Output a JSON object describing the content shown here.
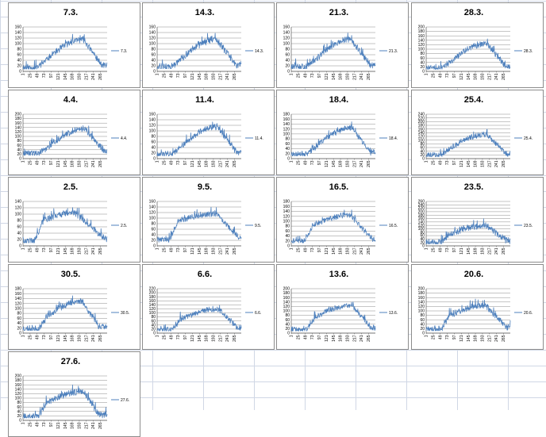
{
  "colors": {
    "series": "#4f81bd",
    "grid": "#8c8c8c",
    "panel_border": "#8c8c8c",
    "sheet_grid": "#d0d7e5"
  },
  "x_tick_labels": [
    "1",
    "25",
    "49",
    "73",
    "97",
    "121",
    "145",
    "169",
    "193",
    "217",
    "241",
    "265"
  ],
  "chart_data": [
    {
      "type": "line",
      "title": "7.3.",
      "series": [
        {
          "name": "7.3.",
          "values": []
        }
      ],
      "yticks": [
        0,
        20,
        40,
        60,
        80,
        100,
        120,
        140,
        160
      ],
      "ylim": [
        0,
        160
      ],
      "shape": {
        "base": 14,
        "low": 40,
        "high": 115,
        "ramp_start": 0.17,
        "peak": 0.72,
        "drop_end": 0.93,
        "noise": 12,
        "seed": 11
      },
      "xlabel": "",
      "ylabel": ""
    },
    {
      "type": "line",
      "title": "14.3.",
      "series": [
        {
          "name": "14.3.",
          "values": []
        }
      ],
      "yticks": [
        0,
        20,
        40,
        60,
        80,
        100,
        120,
        140,
        160
      ],
      "ylim": [
        0,
        160
      ],
      "shape": {
        "base": 16,
        "low": 40,
        "high": 115,
        "ramp_start": 0.17,
        "peak": 0.7,
        "drop_end": 0.94,
        "noise": 13,
        "seed": 12
      },
      "xlabel": "",
      "ylabel": ""
    },
    {
      "type": "line",
      "title": "21.3.",
      "series": [
        {
          "name": "21.3.",
          "values": []
        }
      ],
      "yticks": [
        0,
        20,
        40,
        60,
        80,
        100,
        120,
        140,
        160
      ],
      "ylim": [
        0,
        160
      ],
      "shape": {
        "base": 16,
        "low": 40,
        "high": 115,
        "ramp_start": 0.18,
        "peak": 0.71,
        "drop_end": 0.93,
        "noise": 12,
        "seed": 13
      },
      "xlabel": "",
      "ylabel": ""
    },
    {
      "type": "line",
      "title": "28.3.",
      "series": [
        {
          "name": "28.3.",
          "values": []
        }
      ],
      "yticks": [
        0,
        20,
        40,
        60,
        80,
        100,
        120,
        140,
        160,
        180,
        200
      ],
      "ylim": [
        0,
        200
      ],
      "shape": {
        "base": 16,
        "low": 40,
        "high": 125,
        "ramp_start": 0.18,
        "peak": 0.72,
        "drop_end": 0.94,
        "noise": 14,
        "seed": 14
      },
      "xlabel": "",
      "ylabel": ""
    },
    {
      "type": "line",
      "title": "4.4.",
      "series": [
        {
          "name": "4.4.",
          "values": []
        }
      ],
      "yticks": [
        0,
        20,
        40,
        60,
        80,
        100,
        120,
        140,
        160,
        180,
        200
      ],
      "ylim": [
        0,
        200
      ],
      "shape": {
        "base": 24,
        "low": 45,
        "high": 135,
        "ramp_start": 0.18,
        "peak": 0.74,
        "drop_end": 0.95,
        "noise": 14,
        "seed": 15
      },
      "xlabel": "",
      "ylabel": ""
    },
    {
      "type": "line",
      "title": "11.4.",
      "series": [
        {
          "name": "11.4.",
          "values": []
        }
      ],
      "yticks": [
        0,
        20,
        40,
        60,
        80,
        100,
        120,
        140,
        160
      ],
      "ylim": [
        0,
        160
      ],
      "shape": {
        "base": 16,
        "low": 40,
        "high": 115,
        "ramp_start": 0.17,
        "peak": 0.71,
        "drop_end": 0.94,
        "noise": 12,
        "seed": 16
      },
      "xlabel": "",
      "ylabel": ""
    },
    {
      "type": "line",
      "title": "18.4.",
      "series": [
        {
          "name": "18.4.",
          "values": []
        }
      ],
      "yticks": [
        0,
        20,
        40,
        60,
        80,
        100,
        120,
        140,
        160,
        180
      ],
      "ylim": [
        0,
        180
      ],
      "shape": {
        "base": 18,
        "low": 45,
        "high": 125,
        "ramp_start": 0.18,
        "peak": 0.72,
        "drop_end": 0.94,
        "noise": 13,
        "seed": 17
      },
      "xlabel": "",
      "ylabel": ""
    },
    {
      "type": "line",
      "title": "25.4.",
      "series": [
        {
          "name": "25.4.",
          "values": []
        }
      ],
      "yticks": [
        0,
        20,
        40,
        60,
        80,
        100,
        120,
        140,
        160,
        180,
        200,
        220,
        240
      ],
      "ylim": [
        0,
        240
      ],
      "shape": {
        "base": 18,
        "low": 55,
        "high": 130,
        "ramp_start": 0.18,
        "peak": 0.72,
        "drop_end": 0.95,
        "noise": 16,
        "seed": 18
      },
      "xlabel": "",
      "ylabel": ""
    },
    {
      "type": "line",
      "title": "2.5.",
      "series": [
        {
          "name": "2.5.",
          "values": []
        }
      ],
      "yticks": [
        0,
        20,
        40,
        60,
        80,
        100,
        120,
        140
      ],
      "ylim": [
        0,
        140
      ],
      "shape": {
        "base": 16,
        "low": 80,
        "high": 105,
        "ramp_start": 0.14,
        "peak": 0.62,
        "drop_end": 0.96,
        "noise": 11,
        "seed": 19
      },
      "xlabel": "",
      "ylabel": ""
    },
    {
      "type": "line",
      "title": "9.5.",
      "series": [
        {
          "name": "9.5.",
          "values": []
        }
      ],
      "yticks": [
        0,
        20,
        40,
        60,
        80,
        100,
        120,
        140,
        160
      ],
      "ylim": [
        0,
        160
      ],
      "shape": {
        "base": 22,
        "low": 90,
        "high": 115,
        "ramp_start": 0.15,
        "peak": 0.7,
        "drop_end": 0.96,
        "noise": 12,
        "seed": 20
      },
      "xlabel": "",
      "ylabel": ""
    },
    {
      "type": "line",
      "title": "16.5.",
      "series": [
        {
          "name": "16.5.",
          "values": []
        }
      ],
      "yticks": [
        0,
        20,
        40,
        60,
        80,
        100,
        120,
        140,
        160,
        180
      ],
      "ylim": [
        0,
        180
      ],
      "shape": {
        "base": 20,
        "low": 85,
        "high": 125,
        "ramp_start": 0.16,
        "peak": 0.7,
        "drop_end": 0.96,
        "noise": 12,
        "seed": 21
      },
      "xlabel": "",
      "ylabel": ""
    },
    {
      "type": "line",
      "title": "23.5.",
      "series": [
        {
          "name": "23.5.",
          "values": []
        }
      ],
      "yticks": [
        0,
        20,
        40,
        60,
        80,
        100,
        120,
        140,
        160,
        180,
        200,
        220,
        240,
        260
      ],
      "ylim": [
        0,
        260
      ],
      "shape": {
        "base": 20,
        "low": 70,
        "high": 120,
        "ramp_start": 0.18,
        "peak": 0.71,
        "drop_end": 0.96,
        "noise": 20,
        "seed": 22
      },
      "xlabel": "",
      "ylabel": ""
    },
    {
      "type": "line",
      "title": "30.5.",
      "series": [
        {
          "name": "30.5.",
          "values": []
        }
      ],
      "yticks": [
        0,
        20,
        40,
        60,
        80,
        100,
        120,
        140,
        160,
        180
      ],
      "ylim": [
        0,
        180
      ],
      "shape": {
        "base": 18,
        "low": 70,
        "high": 130,
        "ramp_start": 0.19,
        "peak": 0.7,
        "drop_end": 0.9,
        "noise": 14,
        "seed": 23
      },
      "xlabel": "",
      "ylabel": ""
    },
    {
      "type": "line",
      "title": "6.6.",
      "series": [
        {
          "name": "6.6.",
          "values": []
        }
      ],
      "yticks": [
        0,
        20,
        40,
        60,
        80,
        100,
        120,
        140,
        160,
        180,
        200,
        220
      ],
      "ylim": [
        0,
        220
      ],
      "shape": {
        "base": 18,
        "low": 70,
        "high": 120,
        "ramp_start": 0.18,
        "peak": 0.73,
        "drop_end": 0.95,
        "noise": 15,
        "seed": 24
      },
      "xlabel": "",
      "ylabel": ""
    },
    {
      "type": "line",
      "title": "13.6.",
      "series": [
        {
          "name": "13.6.",
          "values": []
        }
      ],
      "yticks": [
        0,
        20,
        40,
        60,
        80,
        100,
        120,
        140,
        160,
        180,
        200
      ],
      "ylim": [
        0,
        200
      ],
      "shape": {
        "base": 16,
        "low": 75,
        "high": 125,
        "ramp_start": 0.19,
        "peak": 0.72,
        "drop_end": 0.94,
        "noise": 13,
        "seed": 25
      },
      "xlabel": "",
      "ylabel": ""
    },
    {
      "type": "line",
      "title": "20.6.",
      "series": [
        {
          "name": "20.6.",
          "values": []
        }
      ],
      "yticks": [
        0,
        20,
        40,
        60,
        80,
        100,
        120,
        140,
        160,
        180,
        200
      ],
      "ylim": [
        0,
        200
      ],
      "shape": {
        "base": 18,
        "low": 80,
        "high": 125,
        "ramp_start": 0.18,
        "peak": 0.71,
        "drop_end": 0.95,
        "noise": 15,
        "seed": 26
      },
      "xlabel": "",
      "ylabel": ""
    },
    {
      "type": "line",
      "title": "27.6.",
      "series": [
        {
          "name": "27.6.",
          "values": []
        }
      ],
      "yticks": [
        0,
        20,
        40,
        60,
        80,
        100,
        120,
        140,
        160,
        180,
        200
      ],
      "ylim": [
        0,
        200
      ],
      "shape": {
        "base": 18,
        "low": 80,
        "high": 130,
        "ramp_start": 0.18,
        "peak": 0.72,
        "drop_end": 0.9,
        "noise": 15,
        "seed": 27
      },
      "xlabel": "",
      "ylabel": ""
    }
  ]
}
